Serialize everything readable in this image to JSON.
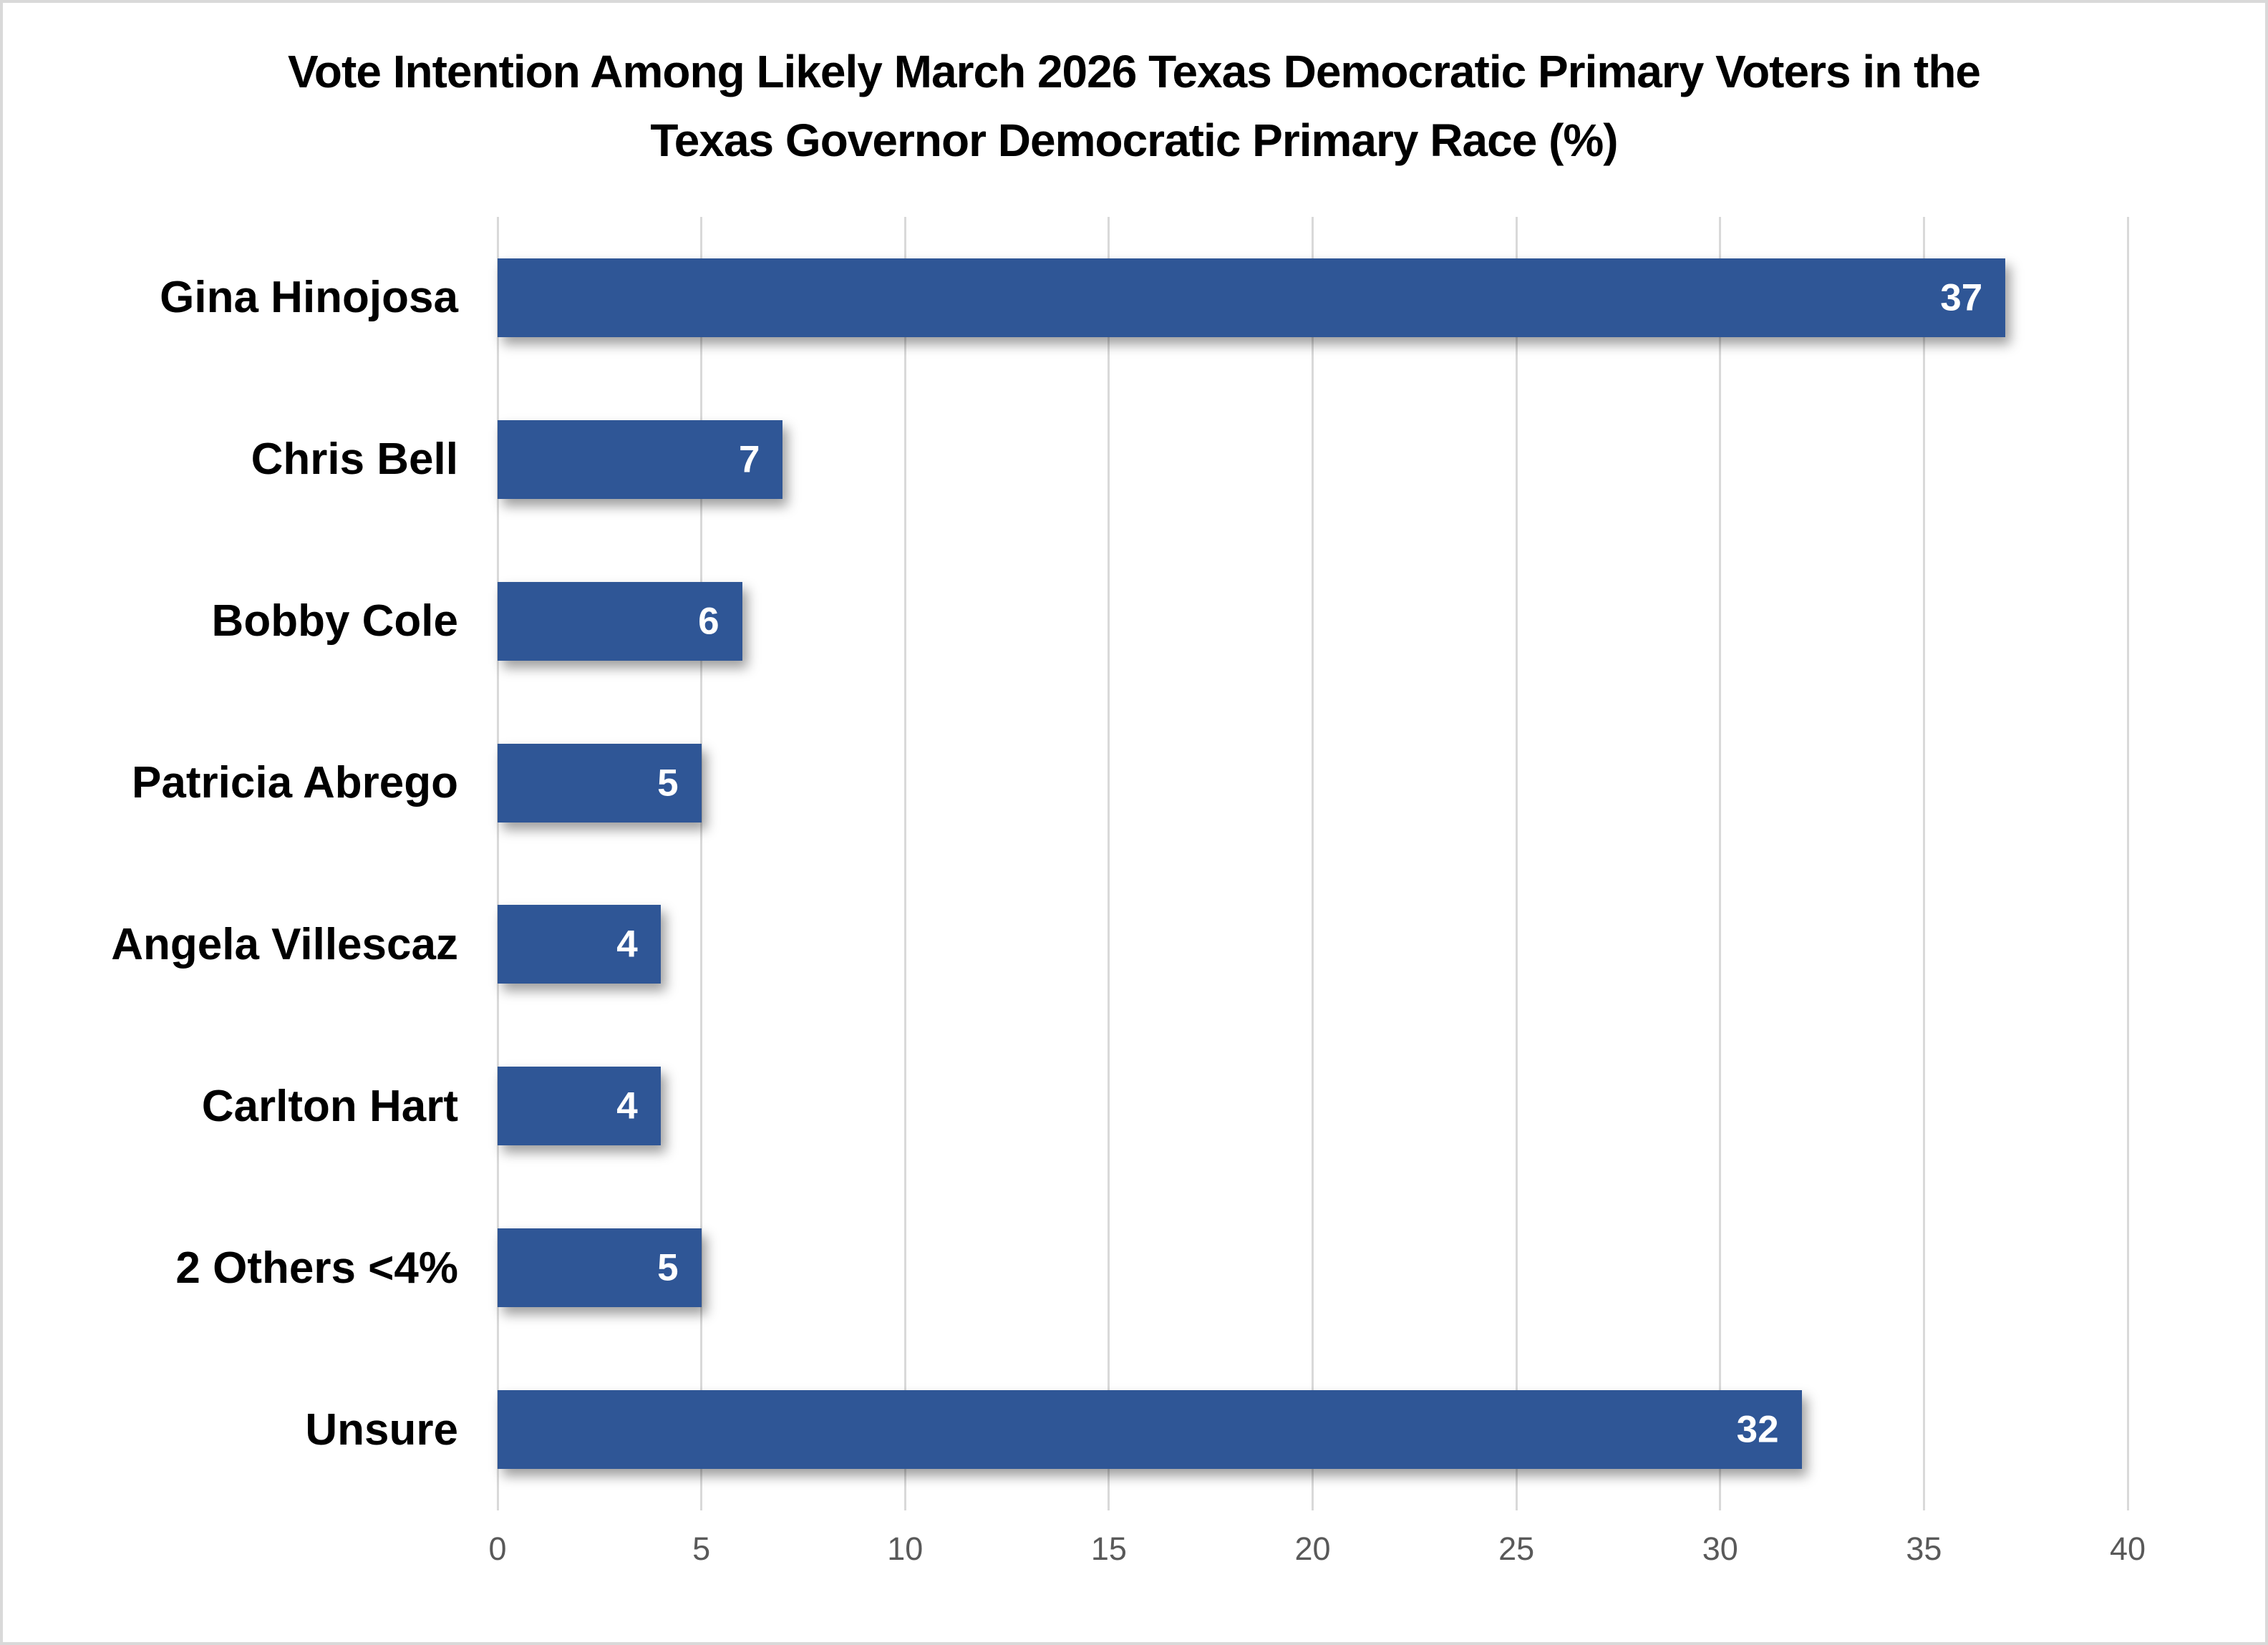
{
  "chart": {
    "title_lines": [
      "Vote Intention Among Likely March 2026 Texas Democratic Primary Voters in the",
      "Texas Governor Democratic Primary Race (%)"
    ]
  },
  "chart_data": {
    "type": "bar",
    "orientation": "horizontal",
    "title": "Vote Intention Among Likely March 2026 Texas Democratic Primary Voters in the Texas Governor Democratic Primary Race (%)",
    "categories": [
      "Gina Hinojosa",
      "Chris Bell",
      "Bobby Cole",
      "Patricia Abrego",
      "Angela Villescaz",
      "Carlton Hart",
      "2 Others <4%",
      "Unsure"
    ],
    "values": [
      37,
      7,
      6,
      5,
      4,
      4,
      5,
      32
    ],
    "xlabel": "",
    "ylabel": "",
    "xlim": [
      0,
      40
    ],
    "xticks": [
      0,
      5,
      10,
      15,
      20,
      25,
      30,
      35,
      40
    ],
    "grid": true,
    "legend": false,
    "value_labels_shown": true,
    "colors": {
      "bar": "#2f5696",
      "gridline": "#d9d9d9",
      "tick_text": "#595959",
      "value_text": "#ffffff",
      "category_text": "#000000",
      "frame_border": "#d9d9d9",
      "background": "#ffffff"
    }
  }
}
